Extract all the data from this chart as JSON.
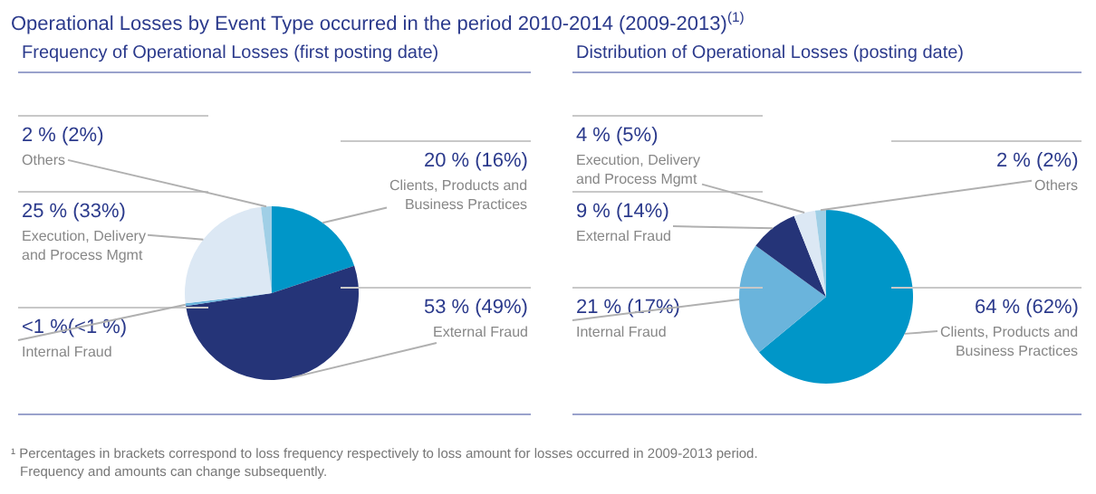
{
  "chart_data": [
    {
      "type": "pie",
      "title": "Operational Losses by Event Type occurred in the period 2010-2014 (2009-2013)$^{(1)}$",
      "subtitle": "Frequency of Operational Losses (first posting date)",
      "categories": [
        "Clients, Products and Business Practices",
        "External Fraud",
        "Internal Fraud",
        "Execution, Delivery and Process Mgmt",
        "Others"
      ],
      "values": [
        20,
        53,
        0.5,
        25,
        2
      ],
      "colors": [
        "#0096c8",
        "#253478",
        "#6ab4dc",
        "#dce8f4",
        "#a0cfe6"
      ],
      "value_labels": [
        "20 % (16%)",
        "53 % (49%)",
        "<1 %(<1 %)",
        "25 % (33%)",
        "2 % (2%)"
      ],
      "annotations": [
        "¹ Percentages in brackets correspond to loss frequency respectively to loss amount for losses occurred in 2009-2013 period.",
        "Frequency and amounts can change subsequently."
      ]
    },
    {
      "type": "pie",
      "title": "Distribution of Operational Losses (posting date)",
      "categories": [
        "Clients, Products and Business Practices",
        "Internal Fraud",
        "External Fraud",
        "Execution, Delivery and Process Mgmt",
        "Others"
      ],
      "values": [
        64,
        21,
        9,
        4,
        2
      ],
      "colors": [
        "#0096c8",
        "#6ab4dc",
        "#253478",
        "#dce8f4",
        "#a0cfe6"
      ],
      "value_labels": [
        "64 % (62%)",
        "21 % (17%)",
        "9 % (14%)",
        "4 % (5%)",
        "2 % (2%)"
      ]
    }
  ]
}
